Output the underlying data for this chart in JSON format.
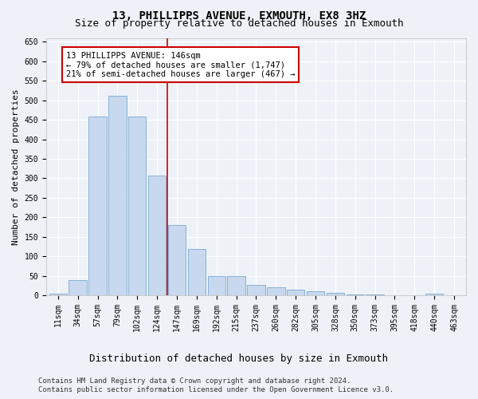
{
  "title": "13, PHILLIPPS AVENUE, EXMOUTH, EX8 3HZ",
  "subtitle": "Size of property relative to detached houses in Exmouth",
  "xlabel": "Distribution of detached houses by size in Exmouth",
  "ylabel": "Number of detached properties",
  "categories": [
    "11sqm",
    "34sqm",
    "57sqm",
    "79sqm",
    "102sqm",
    "124sqm",
    "147sqm",
    "169sqm",
    "192sqm",
    "215sqm",
    "237sqm",
    "260sqm",
    "282sqm",
    "305sqm",
    "328sqm",
    "350sqm",
    "373sqm",
    "395sqm",
    "418sqm",
    "440sqm",
    "463sqm"
  ],
  "values": [
    5,
    38,
    458,
    512,
    458,
    307,
    180,
    118,
    50,
    50,
    27,
    20,
    15,
    10,
    6,
    3,
    2,
    1,
    0,
    5,
    1
  ],
  "bar_color": "#c8d8ee",
  "bar_edge_color": "#7aaad0",
  "background_color": "#eef2f8",
  "grid_color": "#ffffff",
  "vline_color": "#cc0000",
  "annotation_text": "13 PHILLIPPS AVENUE: 146sqm\n← 79% of detached houses are smaller (1,747)\n21% of semi-detached houses are larger (467) →",
  "annotation_box_color": "#cc0000",
  "ylim": [
    0,
    660
  ],
  "yticks": [
    0,
    50,
    100,
    150,
    200,
    250,
    300,
    350,
    400,
    450,
    500,
    550,
    600,
    650
  ],
  "footnote1": "Contains HM Land Registry data © Crown copyright and database right 2024.",
  "footnote2": "Contains public sector information licensed under the Open Government Licence v3.0.",
  "title_fontsize": 10,
  "subtitle_fontsize": 9,
  "ylabel_fontsize": 8,
  "xlabel_fontsize": 9,
  "tick_fontsize": 7,
  "annotation_fontsize": 7.5,
  "footnote_fontsize": 6.5
}
